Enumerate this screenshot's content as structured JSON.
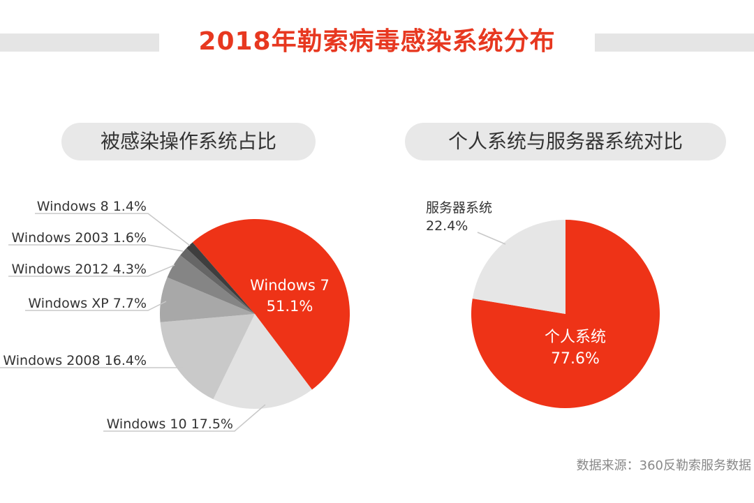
{
  "header": {
    "title": "2018年勒索病毒感染系统分布"
  },
  "chart_data": [
    {
      "type": "pie",
      "title": "被感染操作系统占比",
      "slices": [
        {
          "name": "Windows 7",
          "value": 51.1,
          "label": "51.1%",
          "color": "#ee3317"
        },
        {
          "name": "Windows 10",
          "value": 17.5,
          "label": "17.5%",
          "color": "#e2e2e2"
        },
        {
          "name": "Windows 2008",
          "value": 16.4,
          "label": "16.4%",
          "color": "#c9c9c9"
        },
        {
          "name": "Windows XP",
          "value": 7.7,
          "label": "7.7%",
          "color": "#a8a8a8"
        },
        {
          "name": "Windows 2012",
          "value": 4.3,
          "label": "4.3%",
          "color": "#858585"
        },
        {
          "name": "Windows 2003",
          "value": 1.6,
          "label": "1.6%",
          "color": "#666666"
        },
        {
          "name": "Windows 8",
          "value": 1.4,
          "label": "1.4%",
          "color": "#3e3e3e"
        }
      ]
    },
    {
      "type": "pie",
      "title": "个人系统与服务器系统对比",
      "slices": [
        {
          "name": "个人系统",
          "value": 77.6,
          "label": "77.6%",
          "color": "#ee3317"
        },
        {
          "name": "服务器系统",
          "value": 22.4,
          "label": "22.4%",
          "color": "#e6e6e6"
        }
      ]
    }
  ],
  "footer": {
    "source": "数据来源：360反勒索服务数据"
  }
}
